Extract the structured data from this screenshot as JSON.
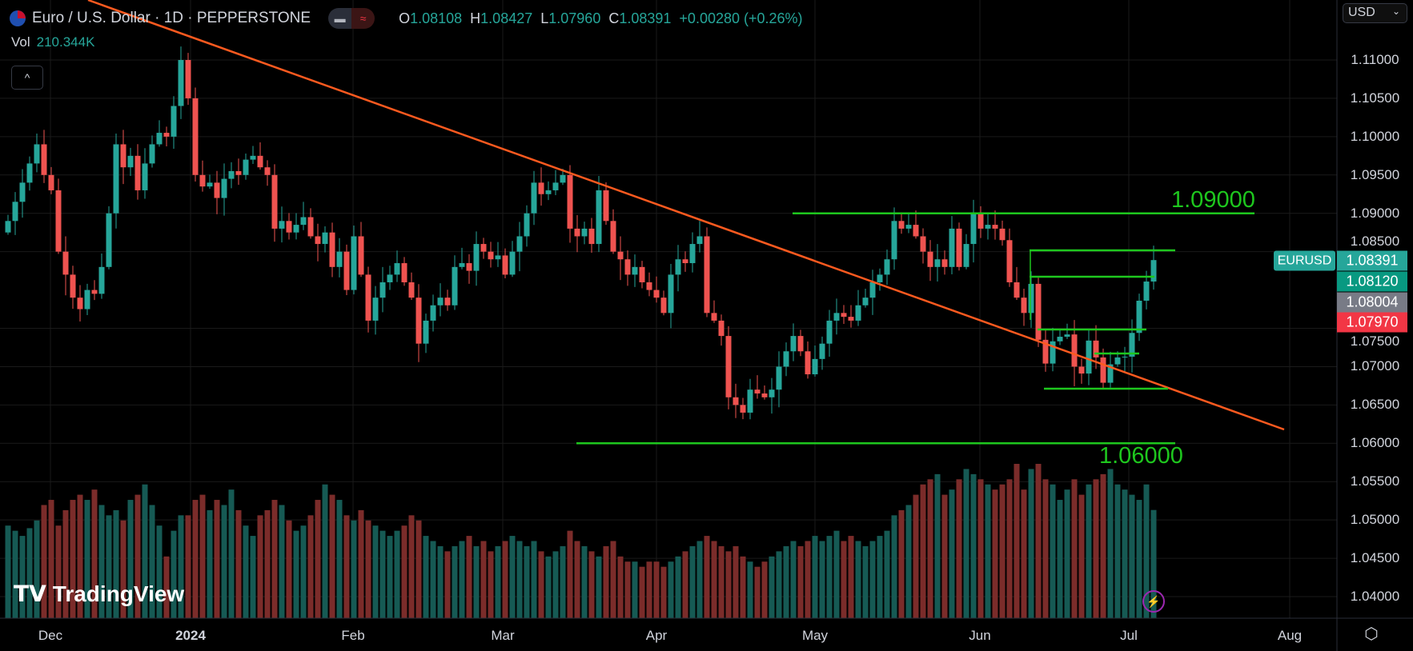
{
  "header": {
    "symbol_title": "Euro / U.S. Dollar · 1D · PEPPERSTONE",
    "ohlc": {
      "o_label": "O",
      "o": "1.08108",
      "h_label": "H",
      "h": "1.08427",
      "l_label": "L",
      "l": "1.07960",
      "c_label": "C",
      "c": "1.08391",
      "change": "+0.00280 (+0.26%)"
    },
    "toggle_icons": [
      "bar-icon",
      "wave-icon"
    ]
  },
  "volume": {
    "label": "Vol",
    "value": "210.344K"
  },
  "collapse_icon": "^",
  "currency": {
    "selected": "USD"
  },
  "colors": {
    "up": "#26a69a",
    "down": "#ef5350",
    "vol_up": "#165a54",
    "vol_down": "#7b2c2a",
    "trendline": "#ff5a1f",
    "levels": "#1ec71e",
    "grid": "#1a1a1a"
  },
  "price_axis": {
    "ticks": [
      "1.11000",
      "1.10500",
      "1.10000",
      "1.09500",
      "1.09000",
      "1.08500",
      "1.07500",
      "1.07000",
      "1.06500",
      "1.06000",
      "1.05500",
      "1.05000",
      "1.04500",
      "1.04000"
    ]
  },
  "price_labels": [
    {
      "name": "EURUSD",
      "value": "1.08391",
      "color": "#26a69a"
    },
    {
      "value": "1.08120",
      "color": "#089981"
    },
    {
      "value": "1.08004",
      "color": "#787b86"
    },
    {
      "value": "1.07970",
      "color": "#f23645"
    }
  ],
  "time_axis": {
    "labels": [
      "Dec",
      "2024",
      "Feb",
      "Mar",
      "Apr",
      "May",
      "Jun",
      "Jul",
      "Aug"
    ]
  },
  "levels": {
    "upper": "1.09000",
    "lower": "1.06000"
  },
  "branding": {
    "logo": "TradingView"
  },
  "chart_data": {
    "type": "candlestick",
    "first_open": 1.0875,
    "closes": [
      1.089,
      1.0915,
      1.094,
      1.0965,
      1.099,
      1.095,
      1.093,
      1.085,
      1.082,
      1.079,
      1.0775,
      1.08,
      1.0795,
      1.083,
      1.09,
      1.099,
      1.096,
      1.0975,
      1.093,
      1.0965,
      1.099,
      1.1005,
      1.1,
      1.104,
      1.11,
      1.105,
      1.095,
      1.0935,
      1.094,
      1.092,
      1.0945,
      1.0955,
      1.095,
      1.097,
      1.0975,
      1.096,
      1.095,
      1.088,
      1.089,
      1.0875,
      1.0885,
      1.0895,
      1.087,
      1.086,
      1.0875,
      1.083,
      1.085,
      1.08,
      1.087,
      1.082,
      1.076,
      1.079,
      1.081,
      1.082,
      1.0835,
      1.081,
      1.079,
      1.073,
      1.076,
      1.078,
      1.079,
      1.078,
      1.083,
      1.0835,
      1.0825,
      1.086,
      1.085,
      1.084,
      1.0845,
      1.082,
      1.085,
      1.087,
      1.09,
      1.094,
      1.0925,
      1.093,
      1.094,
      1.095,
      1.088,
      1.087,
      1.088,
      1.086,
      1.093,
      1.089,
      1.085,
      1.084,
      1.082,
      1.083,
      1.081,
      1.08,
      1.079,
      1.077,
      1.082,
      1.084,
      1.0835,
      1.086,
      1.087,
      1.077,
      1.076,
      1.074,
      1.066,
      1.065,
      1.064,
      1.067,
      1.0665,
      1.066,
      1.067,
      1.07,
      1.072,
      1.074,
      1.072,
      1.069,
      1.071,
      1.073,
      1.076,
      1.077,
      1.0765,
      1.076,
      1.078,
      1.079,
      1.081,
      1.082,
      1.084,
      1.089,
      1.088,
      1.0885,
      1.087,
      1.085,
      1.083,
      1.084,
      1.083,
      1.088,
      1.083,
      1.086,
      1.09,
      1.088,
      1.0885,
      1.088,
      1.0865,
      1.081,
      1.079,
      1.077,
      1.0808,
      1.0735,
      1.0704,
      1.0733,
      1.0739,
      1.0742,
      1.07,
      1.0691,
      1.0734,
      1.0712,
      1.0679,
      1.0703,
      1.0712,
      1.0713,
      1.0744,
      1.0786,
      1.0811,
      1.0839
    ],
    "volumes_k": [
      180,
      170,
      160,
      175,
      190,
      220,
      230,
      180,
      210,
      230,
      240,
      230,
      250,
      220,
      200,
      210,
      190,
      230,
      240,
      260,
      220,
      180,
      120,
      170,
      200,
      200,
      230,
      240,
      210,
      230,
      220,
      250,
      210,
      180,
      160,
      200,
      210,
      230,
      220,
      190,
      170,
      180,
      200,
      230,
      260,
      240,
      230,
      200,
      190,
      210,
      190,
      180,
      170,
      160,
      170,
      180,
      200,
      190,
      160,
      150,
      140,
      130,
      140,
      150,
      160,
      140,
      150,
      130,
      140,
      150,
      160,
      150,
      140,
      150,
      130,
      120,
      130,
      140,
      170,
      150,
      140,
      130,
      120,
      140,
      150,
      120,
      110,
      110,
      100,
      110,
      110,
      100,
      110,
      120,
      130,
      140,
      150,
      160,
      150,
      140,
      130,
      140,
      120,
      110,
      100,
      110,
      120,
      130,
      140,
      150,
      140,
      150,
      160,
      150,
      160,
      170,
      150,
      160,
      150,
      140,
      150,
      160,
      170,
      200,
      210,
      220,
      240,
      260,
      270,
      280,
      240,
      250,
      270,
      290,
      280,
      270,
      260,
      250,
      260,
      270,
      300,
      250,
      290,
      300,
      270,
      260,
      230,
      250,
      270,
      240,
      260,
      270,
      280,
      290,
      260,
      250,
      240,
      230,
      260,
      210.344
    ],
    "ylim": [
      1.04,
      1.11
    ],
    "trendline": "descending",
    "horizontal_levels": [
      1.09,
      1.06,
      1.0852,
      1.0817,
      1.0748,
      1.0716,
      1.0672
    ]
  }
}
